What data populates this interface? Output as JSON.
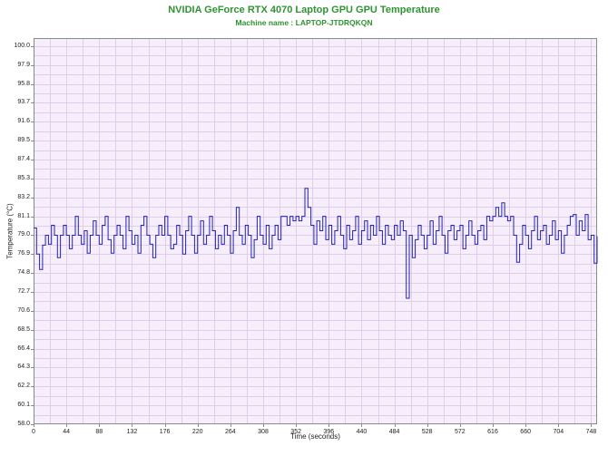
{
  "header": {
    "title": "NVIDIA GeForce RTX 4070 Laptop GPU GPU Temperature",
    "subtitle": "Machine name : LAPTOP-JTDRQKQN"
  },
  "colors": {
    "title_green": "#2f9331",
    "line_blue": "#2323b8",
    "plot_bg": "#f6eefa",
    "grid": "#dfcde9",
    "plot_border": "#8a8a8a",
    "tick_text": "#222222"
  },
  "chart_data": {
    "type": "line",
    "title": "NVIDIA GeForce RTX 4070 Laptop GPU GPU Temperature",
    "subtitle": "Machine name : LAPTOP-JTDRQKQN",
    "xlabel": "Time (seconds)",
    "ylabel": "Temperature (°C)",
    "xlim": [
      0,
      756
    ],
    "ylim": [
      58.0,
      100.9
    ],
    "x_tick_step": 44,
    "y_tick_step": 2.1,
    "x_grid_step": 22,
    "y_grid_step": 1.05,
    "grid": true,
    "legend": "none",
    "x_tick_labels": [
      "0",
      "44",
      "88",
      "132",
      "176",
      "220",
      "264",
      "308",
      "352",
      "396",
      "440",
      "484",
      "528",
      "572",
      "616",
      "660",
      "704",
      "748"
    ],
    "y_tick_labels": [
      "100.0",
      "97.9",
      "95.8",
      "93.7",
      "91.6",
      "89.5",
      "87.4",
      "85.3",
      "83.2",
      "81.1",
      "79.0",
      "76.9",
      "74.8",
      "72.7",
      "70.6",
      "68.5",
      "66.4",
      "64.3",
      "62.2",
      "60.1",
      "58.0"
    ],
    "series_name": "GPU Temperature",
    "x_start": 0,
    "x_step": 4,
    "values": [
      79.8,
      76.9,
      75.2,
      77.9,
      79.0,
      78.0,
      80.1,
      79.0,
      76.5,
      79.0,
      80.1,
      79.0,
      77.5,
      79.0,
      81.1,
      79.0,
      78.0,
      79.5,
      77.0,
      79.0,
      80.6,
      79.0,
      78.0,
      80.1,
      81.1,
      78.5,
      77.0,
      79.0,
      80.1,
      79.0,
      77.5,
      81.1,
      79.5,
      78.0,
      79.0,
      77.0,
      80.1,
      81.1,
      79.0,
      78.0,
      76.5,
      79.0,
      80.1,
      79.0,
      81.1,
      79.0,
      77.5,
      78.0,
      80.1,
      79.0,
      76.9,
      79.5,
      81.1,
      79.0,
      77.0,
      79.0,
      80.6,
      78.0,
      79.0,
      81.1,
      79.5,
      77.5,
      79.0,
      78.0,
      80.1,
      79.0,
      77.0,
      79.5,
      82.1,
      79.0,
      78.0,
      80.1,
      79.0,
      76.5,
      78.5,
      81.1,
      79.0,
      78.0,
      80.1,
      77.5,
      79.0,
      80.1,
      78.5,
      81.1,
      81.1,
      80.1,
      81.1,
      80.6,
      81.1,
      80.6,
      81.1,
      84.2,
      82.1,
      80.1,
      78.0,
      80.6,
      79.5,
      81.1,
      78.5,
      80.1,
      78.0,
      79.5,
      81.1,
      79.0,
      77.5,
      80.1,
      78.5,
      79.5,
      81.1,
      78.0,
      79.5,
      80.6,
      78.5,
      80.1,
      79.0,
      81.1,
      79.5,
      78.0,
      80.1,
      79.0,
      78.5,
      80.1,
      79.0,
      80.6,
      79.5,
      72.0,
      79.0,
      76.5,
      78.5,
      80.1,
      79.0,
      77.5,
      79.0,
      80.6,
      78.0,
      79.5,
      81.1,
      79.0,
      77.0,
      79.5,
      80.1,
      78.5,
      79.5,
      80.1,
      77.5,
      79.0,
      80.6,
      79.0,
      78.0,
      79.5,
      80.1,
      78.5,
      81.1,
      80.6,
      81.1,
      82.1,
      81.1,
      82.6,
      81.1,
      80.6,
      81.1,
      79.0,
      76.0,
      78.0,
      80.1,
      79.0,
      77.5,
      79.5,
      81.1,
      78.5,
      79.5,
      80.1,
      78.0,
      79.0,
      80.6,
      78.5,
      79.5,
      77.0,
      79.0,
      80.1,
      81.1,
      81.3,
      79.0,
      80.6,
      79.5,
      81.3,
      78.5,
      79.0,
      75.9,
      78.9
    ]
  }
}
